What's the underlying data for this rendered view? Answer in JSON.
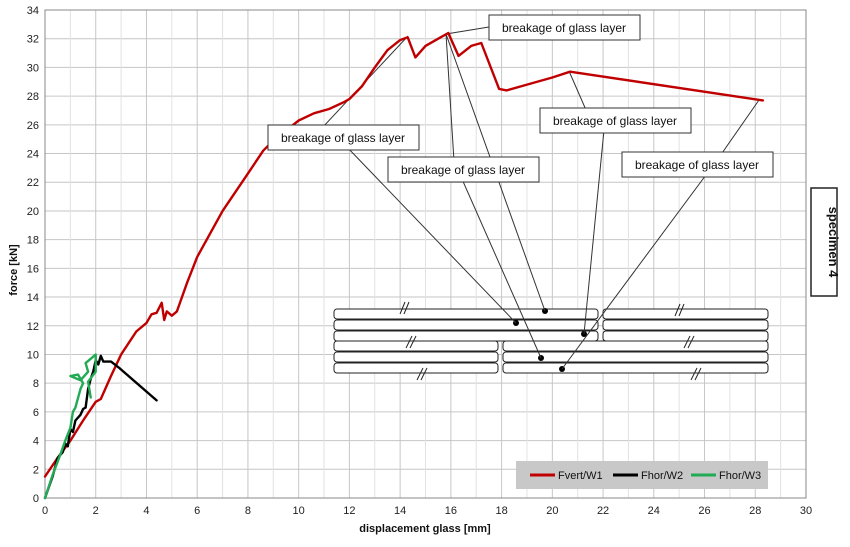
{
  "chart_data": {
    "type": "line",
    "xlabel": "displacement glass [mm]",
    "ylabel": "force [kN]",
    "xlim": [
      0,
      30
    ],
    "ylim": [
      0,
      34
    ],
    "xticks": [
      0,
      2,
      4,
      6,
      8,
      10,
      12,
      14,
      16,
      18,
      20,
      22,
      24,
      26,
      28,
      30
    ],
    "yticks": [
      0,
      2,
      4,
      6,
      8,
      10,
      12,
      14,
      16,
      18,
      20,
      22,
      24,
      26,
      28,
      30,
      32,
      34
    ],
    "grid": true,
    "legend_position": "bottom-right",
    "side_label": "specimen 4",
    "series": [
      {
        "name": "Fvert/W1",
        "color": "#c00000",
        "x": [
          0,
          0.5,
          1,
          1.5,
          2,
          2.2,
          2.6,
          3,
          3.6,
          4,
          4.2,
          4.4,
          4.6,
          4.7,
          4.8,
          5,
          5.2,
          5.6,
          6,
          7,
          8,
          8.6,
          9,
          10,
          10.6,
          11.2,
          11.8,
          12,
          12.5,
          13,
          13.5,
          14,
          14.3,
          14.6,
          15,
          15.5,
          15.9,
          16.3,
          16.8,
          17.2,
          17.9,
          18.2,
          19,
          20,
          20.7,
          28.3
        ],
        "y": [
          1.5,
          2.8,
          4.0,
          5.4,
          6.7,
          6.9,
          8.5,
          10.0,
          11.6,
          12.2,
          12.8,
          12.9,
          13.6,
          12.4,
          13.0,
          12.7,
          13.0,
          15.0,
          16.8,
          20.0,
          22.6,
          24.2,
          24.9,
          26.3,
          26.8,
          27.1,
          27.6,
          27.8,
          28.7,
          30.0,
          31.2,
          31.9,
          32.1,
          30.7,
          31.5,
          32.0,
          32.4,
          30.8,
          31.5,
          31.7,
          28.5,
          28.4,
          28.8,
          29.3,
          29.7,
          27.7
        ]
      },
      {
        "name": "Fhor/W2",
        "color": "#000000",
        "x": [
          0,
          0.3,
          0.5,
          0.7,
          0.8,
          0.9,
          1.0,
          1.1,
          1.2,
          1.4,
          1.5,
          1.6,
          1.7,
          1.8,
          1.9,
          2.0,
          2.1,
          2.2,
          2.3,
          2.6,
          2.9,
          4.4
        ],
        "y": [
          0,
          1.5,
          2.8,
          3.2,
          3.8,
          3.6,
          4.8,
          4.6,
          5.4,
          5.8,
          6.2,
          6.3,
          7.6,
          8.3,
          8.8,
          9.6,
          9.3,
          9.9,
          9.5,
          9.5,
          9.1,
          6.8
        ]
      },
      {
        "name": "Fhor/W3",
        "color": "#22aa55",
        "x": [
          0,
          0.3,
          0.6,
          0.8,
          1.0,
          1.1,
          1.2,
          1.4,
          1.5,
          1.3,
          1.0,
          1.4,
          1.7,
          1.6,
          1.8,
          2.0,
          2.0,
          1.7,
          1.8
        ],
        "y": [
          0,
          1.6,
          3.0,
          4.0,
          4.9,
          6.0,
          6.3,
          7.6,
          8.0,
          8.6,
          8.5,
          8.2,
          8.8,
          9.4,
          9.7,
          10.0,
          8.8,
          8.1,
          7.0
        ]
      }
    ],
    "annotations": [
      {
        "text": "breakage of glass layer",
        "point": [
          14.2,
          32.1
        ],
        "box_label": "mid-left"
      },
      {
        "text": "breakage of glass layer",
        "point": [
          15.9,
          32.4
        ],
        "box_label": "top"
      },
      {
        "text": "breakage of glass layer",
        "point": [
          15.9,
          32.4
        ],
        "box_label": "middle"
      },
      {
        "text": "breakage of glass layer",
        "point": [
          20.7,
          29.7
        ],
        "box_label": "right"
      },
      {
        "text": "breakage of glass layer",
        "point": [
          28.3,
          27.7
        ],
        "box_label": "far-right"
      }
    ]
  }
}
